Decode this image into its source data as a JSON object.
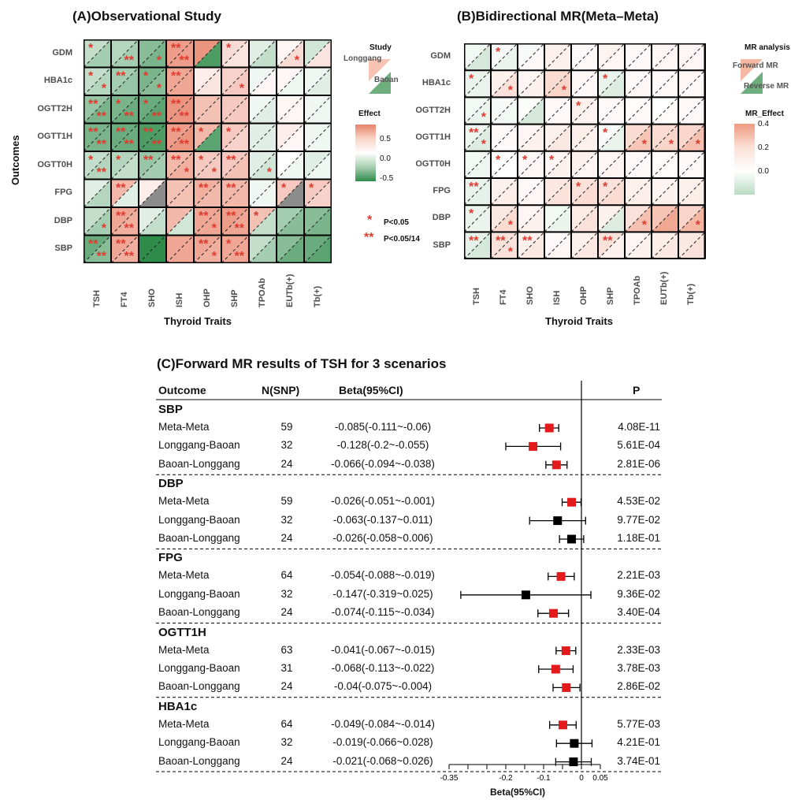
{
  "panel_a": {
    "title": "(A)Observational Study",
    "ylabel": "Outcomes",
    "xlabel": "Thyroid Traits",
    "rows": [
      "GDM",
      "HBA1c",
      "OGTT2H",
      "OGTT1H",
      "OGTT0H",
      "FPG",
      "DBP",
      "SBP"
    ],
    "cols": [
      "TSH",
      "FT4",
      "SHO",
      "ISH",
      "OHP",
      "SHP",
      "TPOAb",
      "EUTb(+)",
      "Tb(+)"
    ],
    "legend_study_title": "Study",
    "legend_study_upper": "Longgang",
    "legend_study_lower": "Baoan",
    "legend_effect_title": "Effect",
    "legend_effect_ticks": [
      "0.5",
      "0.0",
      "-0.5"
    ],
    "sig_p05": "P<0.05",
    "sig_p0514": "P<0.05/14",
    "upper_effects": [
      [
        -0.2,
        -0.25,
        -0.4,
        0.55,
        0.6,
        0.2,
        -0.1,
        0.05,
        -0.15
      ],
      [
        -0.2,
        -0.3,
        -0.45,
        0.5,
        0.1,
        0.25,
        -0.05,
        0.05,
        -0.05
      ],
      [
        -0.35,
        -0.45,
        -0.5,
        0.6,
        0.35,
        0.3,
        -0.05,
        0.05,
        -0.05
      ],
      [
        -0.45,
        -0.5,
        -0.6,
        0.55,
        0.4,
        0.3,
        -0.1,
        0.1,
        -0.05
      ],
      [
        -0.2,
        -0.25,
        -0.35,
        0.4,
        0.3,
        0.3,
        -0.1,
        0.0,
        -0.1
      ],
      [
        -0.1,
        0.4,
        0.1,
        0.35,
        0.45,
        0.4,
        -0.05,
        0.3,
        0.3
      ],
      [
        -0.2,
        0.5,
        -0.1,
        0.4,
        0.5,
        0.55,
        0.35,
        -0.3,
        -0.4
      ],
      [
        -0.5,
        0.5,
        -0.7,
        0.5,
        0.5,
        0.5,
        -0.2,
        -0.4,
        -0.5
      ]
    ],
    "lower_effects": [
      [
        -0.3,
        -0.3,
        -0.45,
        0.55,
        -0.6,
        0.15,
        -0.2,
        0.2,
        0.15
      ],
      [
        -0.25,
        -0.35,
        -0.4,
        0.5,
        0.15,
        0.3,
        0.05,
        -0.05,
        -0.1
      ],
      [
        -0.45,
        -0.5,
        -0.55,
        0.6,
        0.35,
        0.3,
        -0.1,
        0.05,
        -0.05
      ],
      [
        -0.45,
        -0.5,
        -0.6,
        0.6,
        -0.55,
        0.25,
        -0.1,
        0.05,
        -0.05
      ],
      [
        -0.25,
        -0.2,
        -0.3,
        0.45,
        0.3,
        0.35,
        -0.15,
        -0.05,
        -0.05
      ],
      [
        -0.25,
        -0.1,
        "NA",
        0.35,
        0.4,
        0.4,
        -0.05,
        "NA",
        0.25
      ],
      [
        -0.3,
        0.45,
        -0.2,
        -0.15,
        0.5,
        0.5,
        -0.2,
        -0.4,
        -0.45
      ],
      [
        -0.4,
        0.45,
        -0.75,
        0.5,
        0.45,
        0.5,
        -0.3,
        -0.5,
        -0.55
      ]
    ],
    "upper_stars": [
      [
        "*",
        "",
        "",
        "**",
        "",
        "*",
        "",
        "",
        ""
      ],
      [
        "*",
        "**",
        "*",
        "**",
        "",
        "",
        "",
        "",
        ""
      ],
      [
        "**",
        "*",
        "*",
        "**",
        "",
        "",
        "",
        "",
        ""
      ],
      [
        "**",
        "**",
        "**",
        "**",
        "*",
        "*",
        "",
        "",
        ""
      ],
      [
        "*",
        "*",
        "**",
        "**",
        "*",
        "**",
        "",
        "",
        ""
      ],
      [
        "",
        "**",
        "",
        "",
        "**",
        "**",
        "",
        "*",
        "*"
      ],
      [
        "",
        "**",
        "",
        "",
        "**",
        "**",
        "*",
        "",
        ""
      ],
      [
        "**",
        "**",
        "",
        "",
        "**",
        "*",
        "",
        "",
        ""
      ]
    ],
    "lower_stars": [
      [
        "",
        "**",
        "*",
        "**",
        "",
        "",
        "",
        "*",
        ""
      ],
      [
        "*",
        "",
        "*",
        "",
        "",
        "*",
        "",
        "",
        ""
      ],
      [
        "**",
        "**",
        "**",
        "**",
        "",
        "",
        "",
        "",
        ""
      ],
      [
        "**",
        "**",
        "**",
        "**",
        "",
        "",
        "",
        "",
        ""
      ],
      [
        "**",
        "",
        "",
        "*",
        "*",
        "",
        "*",
        "",
        ""
      ],
      [
        "",
        "",
        "",
        "",
        "",
        "",
        "",
        "",
        ""
      ],
      [
        "*",
        "**",
        "",
        "",
        "*",
        "**",
        "",
        "",
        ""
      ],
      [
        "**",
        "**",
        "",
        "",
        "*",
        "**",
        "",
        "",
        ""
      ]
    ]
  },
  "panel_b": {
    "title": "(B)Bidirectional MR(Meta–Meta)",
    "xlabel": "Thyroid Traits",
    "rows": [
      "GDM",
      "HBA1c",
      "OGTT2H",
      "OGTT1H",
      "OGTT0H",
      "FPG",
      "DBP",
      "SBP"
    ],
    "cols": [
      "TSH",
      "FT4",
      "SHO",
      "ISH",
      "OHP",
      "SHP",
      "TPOAb",
      "EUTb(+)",
      "Tb(+)"
    ],
    "legend_mr_title": "MR analysis",
    "legend_mr_upper": "Forward MR",
    "legend_mr_lower": "Reverse MR",
    "legend_effect_title": "MR_Effect",
    "legend_effect_ticks": [
      "0.4",
      "0.2",
      "0.0"
    ],
    "upper_effects": [
      [
        -0.03,
        -0.02,
        -0.02,
        0.05,
        0.02,
        0.04,
        0.02,
        0.03,
        0.03
      ],
      [
        -0.05,
        0.05,
        0.03,
        0.12,
        0.03,
        -0.05,
        0.02,
        0.02,
        0.03
      ],
      [
        -0.03,
        -0.02,
        -0.01,
        0.02,
        0.05,
        0.02,
        0.01,
        0.0,
        0.02
      ],
      [
        -0.04,
        0.02,
        0.03,
        0.05,
        0.06,
        -0.02,
        0.12,
        0.12,
        0.14
      ],
      [
        -0.03,
        0.0,
        0.02,
        0.03,
        0.05,
        0.03,
        0.02,
        0.01,
        0.02
      ],
      [
        -0.05,
        0.05,
        0.02,
        0.08,
        0.1,
        0.1,
        0.05,
        0.04,
        0.05
      ],
      [
        -0.05,
        0.08,
        0.03,
        -0.03,
        0.07,
        0.05,
        0.1,
        0.2,
        0.15
      ],
      [
        -0.06,
        0.1,
        0.05,
        0.02,
        0.05,
        0.1,
        0.03,
        0.06,
        0.08
      ]
    ],
    "lower_effects": [
      [
        -0.1,
        -0.05,
        0.02,
        0.05,
        0.02,
        0.03,
        0.02,
        0.03,
        0.03
      ],
      [
        -0.05,
        0.1,
        0.05,
        0.15,
        0.02,
        -0.08,
        0.03,
        0.02,
        0.02
      ],
      [
        -0.05,
        -0.03,
        -0.1,
        0.02,
        0.04,
        0.02,
        0.02,
        0.01,
        0.02
      ],
      [
        -0.08,
        0.02,
        0.05,
        0.08,
        0.05,
        -0.05,
        0.2,
        0.15,
        0.22
      ],
      [
        -0.04,
        0.0,
        0.03,
        0.05,
        0.03,
        0.04,
        0.02,
        0.01,
        0.02
      ],
      [
        -0.06,
        0.06,
        0.03,
        0.1,
        0.12,
        0.12,
        0.06,
        0.05,
        0.06
      ],
      [
        -0.05,
        0.12,
        0.05,
        -0.05,
        0.1,
        -0.08,
        0.22,
        0.3,
        0.25
      ],
      [
        -0.1,
        0.1,
        0.08,
        0.03,
        0.08,
        0.05,
        0.05,
        0.08,
        0.1
      ]
    ],
    "upper_stars": [
      [
        "",
        "*",
        "",
        "",
        "",
        "",
        "",
        "",
        ""
      ],
      [
        "*",
        "",
        "",
        "",
        "",
        "*",
        "",
        "",
        ""
      ],
      [
        "",
        "",
        "",
        "",
        "*",
        "",
        "",
        "",
        ""
      ],
      [
        "**",
        "",
        "",
        "",
        "",
        "*",
        "",
        "",
        ""
      ],
      [
        "",
        "*",
        "*",
        "*",
        "",
        "",
        "",
        "",
        ""
      ],
      [
        "**",
        "",
        "",
        "",
        "*",
        "*",
        "",
        "",
        ""
      ],
      [
        "*",
        "",
        "",
        "",
        "",
        "",
        "",
        "",
        ""
      ],
      [
        "**",
        "**",
        "**",
        "",
        "",
        "**",
        "",
        "",
        ""
      ]
    ],
    "lower_stars": [
      [
        "",
        "",
        "",
        "",
        "",
        "",
        "",
        "",
        ""
      ],
      [
        "",
        "*",
        "",
        "*",
        "",
        "",
        "",
        "",
        ""
      ],
      [
        "*",
        "",
        "",
        "",
        "",
        "",
        "",
        "",
        ""
      ],
      [
        "*",
        "",
        "",
        "",
        "",
        "",
        "*",
        "*",
        "*"
      ],
      [
        "",
        "",
        "",
        "",
        "",
        "",
        "",
        "",
        ""
      ],
      [
        "",
        "",
        "",
        "",
        "",
        "",
        "",
        "",
        ""
      ],
      [
        "",
        "*",
        "",
        "",
        "",
        "",
        "*",
        "",
        "*"
      ],
      [
        "",
        "*",
        "",
        "",
        "",
        "",
        "",
        "",
        ""
      ]
    ]
  },
  "panel_c": {
    "title": "(C)Forward MR results of TSH for 3 scenarios",
    "headers": {
      "outcome": "Outcome",
      "n": "N(SNP)",
      "beta": "Beta(95%CI)",
      "p": "P"
    },
    "xlabel": "Beta(95%CI)",
    "axis_ticks": [
      "-0.35",
      "-0.2",
      "-0.1",
      "0",
      "0.05"
    ]
  },
  "chart_data": [
    {
      "type": "heatmap",
      "title": "(A)Observational Study",
      "ylabel": "Outcomes",
      "xlabel": "Thyroid Traits",
      "legend": "right"
    },
    {
      "type": "heatmap",
      "title": "(B)Bidirectional MR(Meta–Meta)",
      "xlabel": "Thyroid Traits",
      "legend": "right"
    },
    {
      "type": "scatter",
      "title": "(C)Forward MR results of TSH for 3 scenarios",
      "xlabel": "Beta(95%CI)",
      "xlim": [
        -0.35,
        0.05
      ],
      "groups": [
        {
          "outcome": "SBP",
          "rows": [
            {
              "scenario": "Meta-Meta",
              "n": "59",
              "ci": "-0.085(-0.111~-0.06)",
              "beta": -0.085,
              "lo": -0.111,
              "hi": -0.06,
              "p": "4.08E-11",
              "sig": true
            },
            {
              "scenario": "Longgang-Baoan",
              "n": "32",
              "ci": "-0.128(-0.2~-0.055)",
              "beta": -0.128,
              "lo": -0.2,
              "hi": -0.055,
              "p": "5.61E-04",
              "sig": true
            },
            {
              "scenario": "Baoan-Longgang",
              "n": "24",
              "ci": "-0.066(-0.094~-0.038)",
              "beta": -0.066,
              "lo": -0.094,
              "hi": -0.038,
              "p": "2.81E-06",
              "sig": true
            }
          ]
        },
        {
          "outcome": "DBP",
          "rows": [
            {
              "scenario": "Meta-Meta",
              "n": "59",
              "ci": "-0.026(-0.051~-0.001)",
              "beta": -0.026,
              "lo": -0.051,
              "hi": -0.001,
              "p": "4.53E-02",
              "sig": true
            },
            {
              "scenario": "Longgang-Baoan",
              "n": "32",
              "ci": "-0.063(-0.137~0.011)",
              "beta": -0.063,
              "lo": -0.137,
              "hi": 0.011,
              "p": "9.77E-02",
              "sig": false
            },
            {
              "scenario": "Baoan-Longgang",
              "n": "24",
              "ci": "-0.026(-0.058~0.006)",
              "beta": -0.026,
              "lo": -0.058,
              "hi": 0.006,
              "p": "1.18E-01",
              "sig": false
            }
          ]
        },
        {
          "outcome": "FPG",
          "rows": [
            {
              "scenario": "Meta-Meta",
              "n": "64",
              "ci": "-0.054(-0.088~-0.019)",
              "beta": -0.054,
              "lo": -0.088,
              "hi": -0.019,
              "p": "2.21E-03",
              "sig": true
            },
            {
              "scenario": "Longgang-Baoan",
              "n": "32",
              "ci": "-0.147(-0.319~0.025)",
              "beta": -0.147,
              "lo": -0.319,
              "hi": 0.025,
              "p": "9.36E-02",
              "sig": false
            },
            {
              "scenario": "Baoan-Longgang",
              "n": "24",
              "ci": "-0.074(-0.115~-0.034)",
              "beta": -0.074,
              "lo": -0.115,
              "hi": -0.034,
              "p": "3.40E-04",
              "sig": true
            }
          ]
        },
        {
          "outcome": "OGTT1H",
          "rows": [
            {
              "scenario": "Meta-Meta",
              "n": "63",
              "ci": "-0.041(-0.067~-0.015)",
              "beta": -0.041,
              "lo": -0.067,
              "hi": -0.015,
              "p": "2.33E-03",
              "sig": true
            },
            {
              "scenario": "Longgang-Baoan",
              "n": "31",
              "ci": "-0.068(-0.113~-0.022)",
              "beta": -0.068,
              "lo": -0.113,
              "hi": -0.022,
              "p": "3.78E-03",
              "sig": true
            },
            {
              "scenario": "Baoan-Longgang",
              "n": "24",
              "ci": "-0.04(-0.075~-0.004)",
              "beta": -0.04,
              "lo": -0.075,
              "hi": -0.004,
              "p": "2.86E-02",
              "sig": true
            }
          ]
        },
        {
          "outcome": "HBA1c",
          "rows": [
            {
              "scenario": "Meta-Meta",
              "n": "64",
              "ci": "-0.049(-0.084~-0.014)",
              "beta": -0.049,
              "lo": -0.084,
              "hi": -0.014,
              "p": "5.77E-03",
              "sig": true
            },
            {
              "scenario": "Longgang-Baoan",
              "n": "32",
              "ci": "-0.019(-0.066~0.028)",
              "beta": -0.019,
              "lo": -0.066,
              "hi": 0.028,
              "p": "4.21E-01",
              "sig": false
            },
            {
              "scenario": "Baoan-Longgang",
              "n": "24",
              "ci": "-0.021(-0.068~0.026)",
              "beta": -0.021,
              "lo": -0.068,
              "hi": 0.026,
              "p": "3.74E-01",
              "sig": false
            }
          ]
        }
      ]
    }
  ],
  "colors": {
    "positive": "#e8826a",
    "negative": "#2e8b4a",
    "na": "#8c8c8c",
    "star": "#e03a2f",
    "sig_marker": "#e31a1c",
    "nonsig_marker": "#000000"
  }
}
